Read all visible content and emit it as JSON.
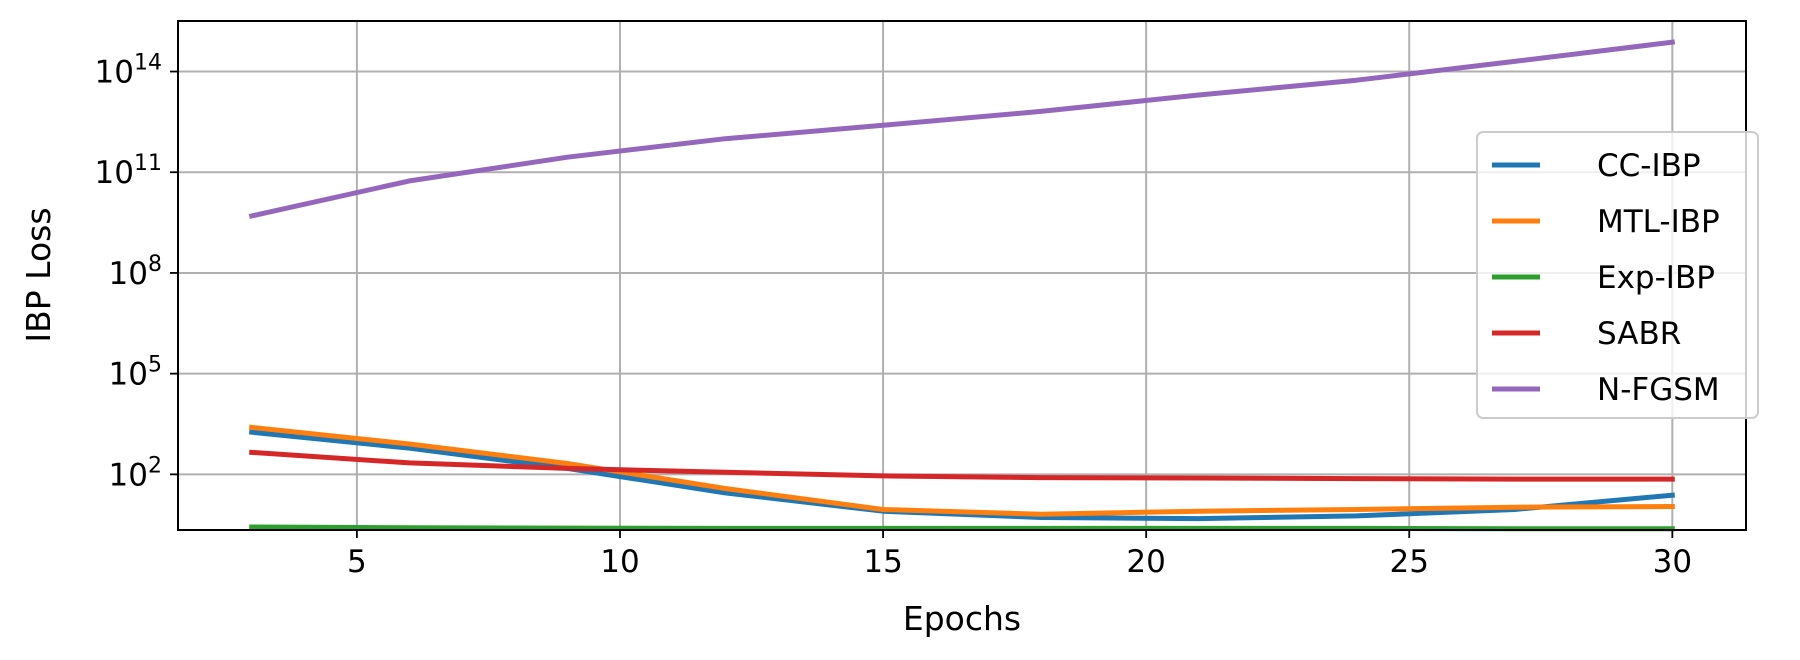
{
  "chart_data": {
    "type": "line",
    "title": "",
    "xlabel": "Epochs",
    "ylabel": "IBP Loss",
    "yscale": "log",
    "xlim": [
      1.6,
      31.4
    ],
    "ylim": [
      2.2,
      3200000000000000.0
    ],
    "grid": true,
    "legend_position": "center-right",
    "x_ticks": [
      5,
      10,
      15,
      20,
      25,
      30
    ],
    "x_tick_labels": [
      "5",
      "10",
      "15",
      "20",
      "25",
      "30"
    ],
    "y_ticks": [
      {
        "value": 100,
        "base": "10",
        "exp": "2"
      },
      {
        "value": 100000,
        "base": "10",
        "exp": "5"
      },
      {
        "value": 100000000,
        "base": "10",
        "exp": "8"
      },
      {
        "value": 100000000000,
        "base": "10",
        "exp": "11"
      },
      {
        "value": 100000000000000,
        "base": "10",
        "exp": "14"
      }
    ],
    "series": [
      {
        "name": "CC-IBP",
        "color": "#1f77b4",
        "x": [
          3,
          6,
          9,
          12,
          15,
          18,
          21,
          24,
          27,
          30
        ],
        "y": [
          1800,
          600,
          150,
          28,
          8,
          5.2,
          4.8,
          5.8,
          9,
          24
        ]
      },
      {
        "name": "MTL-IBP",
        "color": "#ff7f0e",
        "x": [
          3,
          6,
          9,
          12,
          15,
          18,
          21,
          24,
          27,
          30
        ],
        "y": [
          2500,
          800,
          210,
          38,
          9,
          6.5,
          8,
          9,
          10.5,
          11
        ]
      },
      {
        "name": "Exp-IBP",
        "color": "#2ca02c",
        "x": [
          3,
          6,
          9,
          12,
          15,
          18,
          21,
          24,
          27,
          30
        ],
        "y": [
          2.7,
          2.55,
          2.5,
          2.45,
          2.45,
          2.45,
          2.45,
          2.45,
          2.4,
          2.4
        ]
      },
      {
        "name": "SABR",
        "color": "#d62728",
        "x": [
          3,
          6,
          9,
          12,
          15,
          18,
          21,
          24,
          27,
          30
        ],
        "y": [
          450,
          220,
          150,
          115,
          90,
          80,
          78,
          75,
          72,
          72
        ]
      },
      {
        "name": "N-FGSM",
        "color": "#9467bd",
        "x": [
          3,
          6,
          9,
          12,
          15,
          18,
          21,
          24,
          27,
          30
        ],
        "y": [
          5000000000,
          55000000000,
          280000000000,
          1000000000000,
          2500000000000,
          6500000000000,
          20000000000000,
          55000000000000,
          200000000000000,
          750000000000000
        ]
      }
    ]
  }
}
